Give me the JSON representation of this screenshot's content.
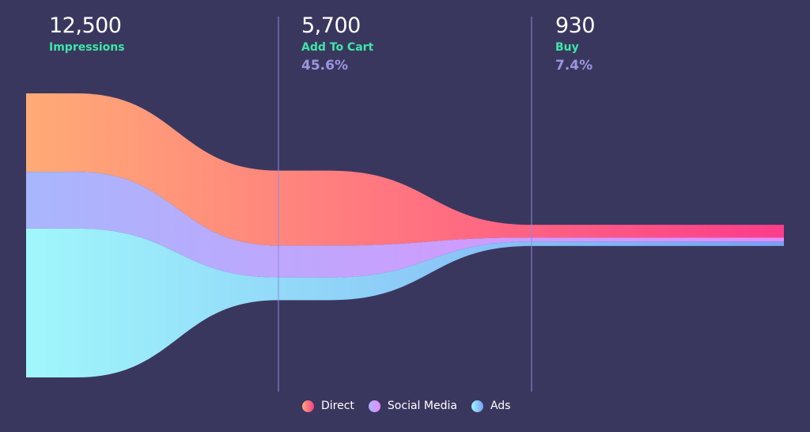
{
  "chart_data": {
    "type": "area",
    "stages": [
      {
        "value_label": "12,500",
        "label": "Impressions",
        "percent": ""
      },
      {
        "value_label": "5,700",
        "label": "Add To Cart",
        "percent": "45.6%"
      },
      {
        "value_label": "930",
        "label": "Buy",
        "percent": "7.4%"
      }
    ],
    "categories": [
      "Impressions",
      "Add To Cart",
      "Buy"
    ],
    "series": [
      {
        "name": "Direct",
        "values": [
          3450,
          3300,
          560
        ],
        "colors": [
          "#ffab76",
          "#ff3c8a"
        ]
      },
      {
        "name": "Social Media",
        "values": [
          2500,
          1400,
          170
        ],
        "colors": [
          "#a8b6fc",
          "#e88aff"
        ]
      },
      {
        "name": "Ads",
        "values": [
          6550,
          1000,
          200
        ],
        "colors": [
          "#a0f7fb",
          "#7a9ff4"
        ]
      }
    ],
    "totals": [
      12500,
      5700,
      930
    ],
    "legend": "bottom-center",
    "colors": {
      "background": "#3a375f",
      "divider": "#8f89dc",
      "label": "#3ee6a6",
      "percent": "#9d95e0"
    }
  }
}
